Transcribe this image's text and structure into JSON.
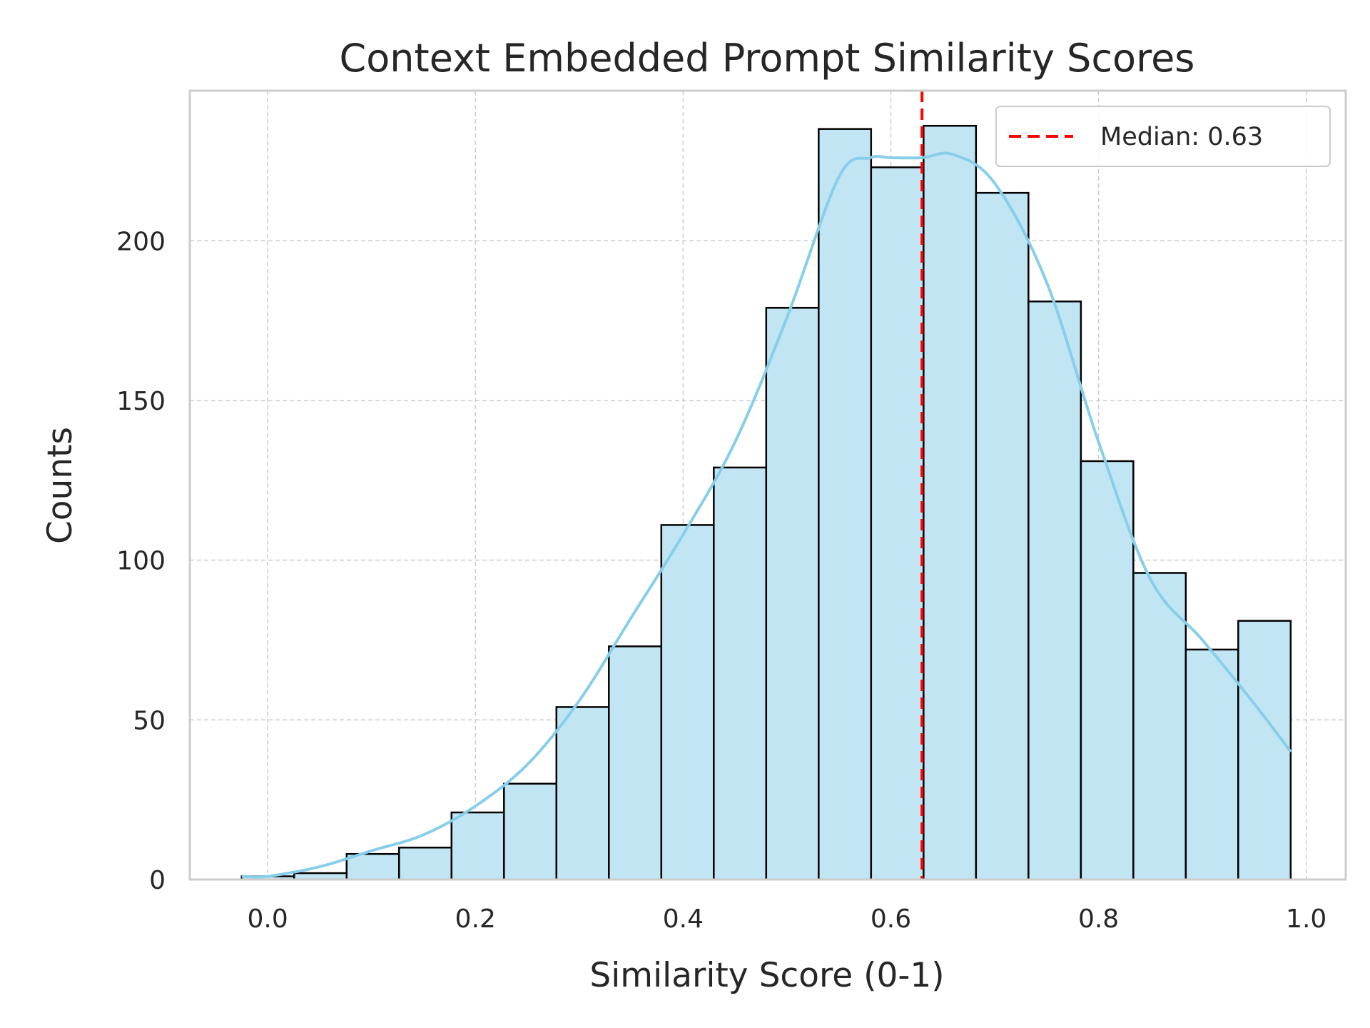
{
  "chart_data": {
    "type": "bar",
    "title": "Context Embedded Prompt Similarity Scores",
    "xlabel": "Similarity Score (0-1)",
    "ylabel": "Counts",
    "xlim": [
      -0.075,
      1.038
    ],
    "ylim": [
      0,
      247
    ],
    "x_ticks": [
      0.0,
      0.2,
      0.4,
      0.6,
      0.8,
      1.0
    ],
    "x_tick_labels": [
      "0.0",
      "0.2",
      "0.4",
      "0.6",
      "0.8",
      "1.0"
    ],
    "y_ticks": [
      0,
      50,
      100,
      150,
      200
    ],
    "y_tick_labels": [
      "0",
      "50",
      "100",
      "150",
      "200"
    ],
    "grid": true,
    "legend_position": "top-right",
    "bin_edges": [
      -0.025,
      0.0255,
      0.076,
      0.1265,
      0.177,
      0.2275,
      0.278,
      0.3285,
      0.379,
      0.4295,
      0.48,
      0.5305,
      0.581,
      0.6315,
      0.682,
      0.7325,
      0.783,
      0.8335,
      0.884,
      0.9345,
      0.985
    ],
    "values": [
      1,
      2,
      8,
      10,
      21,
      30,
      54,
      73,
      111,
      129,
      179,
      235,
      223,
      236,
      215,
      181,
      131,
      96,
      72,
      81
    ],
    "kde": {
      "x": [
        -0.025,
        0.0,
        0.05,
        0.1,
        0.15,
        0.2,
        0.25,
        0.3,
        0.35,
        0.4,
        0.45,
        0.5,
        0.55,
        0.58,
        0.6,
        0.63,
        0.66,
        0.7,
        0.75,
        0.8,
        0.85,
        0.9,
        0.95,
        0.985
      ],
      "y": [
        1,
        1,
        4,
        9,
        14,
        23,
        36,
        56,
        82,
        108,
        137,
        176,
        220,
        226,
        226,
        226,
        227,
        218,
        187,
        137,
        94,
        75,
        55,
        40
      ]
    },
    "median": {
      "value": 0.63,
      "label": "Median: 0.63"
    },
    "colors": {
      "bar_fill": "#c2e5f4",
      "bar_edge": "#000000",
      "kde_line": "#87ceeb",
      "median_line": "#ff0000",
      "grid": "#cccccc",
      "frame": "#cccccc"
    }
  }
}
